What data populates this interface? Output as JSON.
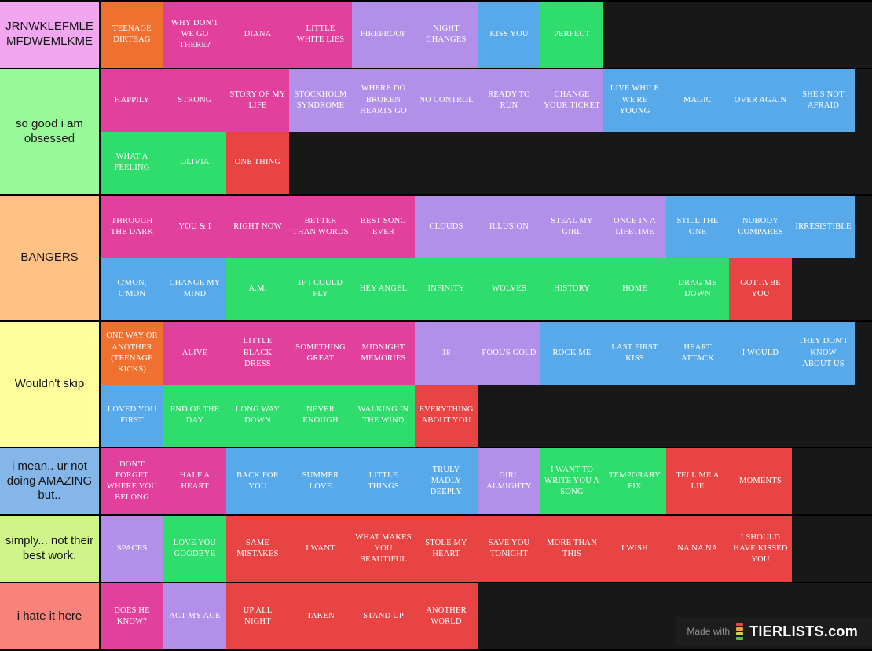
{
  "palette": {
    "orange": "#F0712F",
    "magenta": "#E2409D",
    "purple": "#B28FE8",
    "blue": "#58A9EA",
    "green": "#2EDD6B",
    "red": "#E94444"
  },
  "footer": {
    "made_with": "Made with",
    "brand": "TIERLISTS.com",
    "icon_bar_colors": [
      "#E14B4B",
      "#E8A33D",
      "#D3D34A",
      "#58C15A"
    ]
  },
  "tiers": [
    {
      "label": "JRNWKLEFMLE MFDWEMLKME",
      "label_color": "#F2A6F0",
      "items": [
        {
          "label": "TEENAGE DIRTBAG",
          "color": "orange"
        },
        {
          "label": "WHY DON'T WE GO THERE?",
          "color": "magenta"
        },
        {
          "label": "DIANA",
          "color": "magenta"
        },
        {
          "label": "LITTLE WHITE LIES",
          "color": "magenta"
        },
        {
          "label": "FIREPROOF",
          "color": "purple"
        },
        {
          "label": "NIGHT CHANGES",
          "color": "purple"
        },
        {
          "label": "KISS YOU",
          "color": "blue"
        },
        {
          "label": "PERFECT",
          "color": "green"
        }
      ]
    },
    {
      "label": "so good i am obsessed",
      "label_color": "#98F998",
      "items": [
        {
          "label": "HAPPILY",
          "color": "magenta"
        },
        {
          "label": "STRONG",
          "color": "magenta"
        },
        {
          "label": "STORY OF MY LIFE",
          "color": "magenta"
        },
        {
          "label": "STOCKHOLM SYNDROME",
          "color": "purple"
        },
        {
          "label": "WHERE DO BROKEN HEARTS GO",
          "color": "purple"
        },
        {
          "label": "NO CONTROL",
          "color": "purple"
        },
        {
          "label": "READY TO RUN",
          "color": "purple"
        },
        {
          "label": "CHANGE YOUR TICKET",
          "color": "purple"
        },
        {
          "label": "LIVE WHILE WE'RE YOUNG",
          "color": "blue"
        },
        {
          "label": "MAGIC",
          "color": "blue"
        },
        {
          "label": "OVER AGAIN",
          "color": "blue"
        },
        {
          "label": "SHE'S NOT AFRAID",
          "color": "blue"
        },
        {
          "label": "WHAT A FEELING",
          "color": "green"
        },
        {
          "label": "OLIVIA",
          "color": "green"
        },
        {
          "label": "ONE THING",
          "color": "red"
        }
      ]
    },
    {
      "label": "BANGERS",
      "label_color": "#FFC184",
      "items": [
        {
          "label": "THROUGH THE DARK",
          "color": "magenta"
        },
        {
          "label": "YOU & I",
          "color": "magenta"
        },
        {
          "label": "RIGHT NOW",
          "color": "magenta"
        },
        {
          "label": "BETTER THAN WORDS",
          "color": "magenta"
        },
        {
          "label": "BEST SONG EVER",
          "color": "magenta"
        },
        {
          "label": "CLOUDS",
          "color": "purple"
        },
        {
          "label": "ILLUSION",
          "color": "purple"
        },
        {
          "label": "STEAL MY GIRL",
          "color": "purple"
        },
        {
          "label": "ONCE IN A LIFETIME",
          "color": "purple"
        },
        {
          "label": "STILL THE ONE",
          "color": "blue"
        },
        {
          "label": "NOBODY COMPARES",
          "color": "blue"
        },
        {
          "label": "IRRESISTIBLE",
          "color": "blue"
        },
        {
          "label": "C'MON, C'MON",
          "color": "blue"
        },
        {
          "label": "CHANGE MY MIND",
          "color": "blue"
        },
        {
          "label": "A.M.",
          "color": "green"
        },
        {
          "label": "IF I COULD FLY",
          "color": "green"
        },
        {
          "label": "HEY ANGEL",
          "color": "green"
        },
        {
          "label": "INFINITY",
          "color": "green"
        },
        {
          "label": "WOLVES",
          "color": "green"
        },
        {
          "label": "HISTORY",
          "color": "green"
        },
        {
          "label": "HOME",
          "color": "green"
        },
        {
          "label": "DRAG ME DOWN",
          "color": "green"
        },
        {
          "label": "GOTTA BE YOU",
          "color": "red"
        }
      ]
    },
    {
      "label": "Wouldn't skip",
      "label_color": "#FFFD9C",
      "items": [
        {
          "label": "ONE WAY OR ANOTHER (TEENAGE KICKS)",
          "color": "orange"
        },
        {
          "label": "ALIVE",
          "color": "magenta"
        },
        {
          "label": "LITTLE BLACK DRESS",
          "color": "magenta"
        },
        {
          "label": "SOMETHING GREAT",
          "color": "magenta"
        },
        {
          "label": "MIDNIGHT MEMORIES",
          "color": "magenta"
        },
        {
          "label": "18",
          "color": "purple"
        },
        {
          "label": "FOOL'S GOLD",
          "color": "purple"
        },
        {
          "label": "ROCK ME",
          "color": "blue"
        },
        {
          "label": "LAST FIRST KISS",
          "color": "blue"
        },
        {
          "label": "HEART ATTACK",
          "color": "blue"
        },
        {
          "label": "I WOULD",
          "color": "blue"
        },
        {
          "label": "THEY DON'T KNOW ABOUT US",
          "color": "blue"
        },
        {
          "label": "LOVED YOU FIRST",
          "color": "blue"
        },
        {
          "label": "END OF THE DAY",
          "color": "green"
        },
        {
          "label": "LONG WAY DOWN",
          "color": "green"
        },
        {
          "label": "NEVER ENOUGH",
          "color": "green"
        },
        {
          "label": "WALKING IN THE WIND",
          "color": "green"
        },
        {
          "label": "EVERYTHING ABOUT YOU",
          "color": "red"
        }
      ]
    },
    {
      "label": "i mean.. ur not doing AMAZING but..",
      "label_color": "#84B6E9",
      "items": [
        {
          "label": "DON'T FORGET WHERE YOU BELONG",
          "color": "magenta"
        },
        {
          "label": "HALF A HEART",
          "color": "magenta"
        },
        {
          "label": "BACK FOR YOU",
          "color": "blue"
        },
        {
          "label": "SUMMER LOVE",
          "color": "blue"
        },
        {
          "label": "LITTLE THINGS",
          "color": "blue"
        },
        {
          "label": "TRULY MADLY DEEPLY",
          "color": "blue"
        },
        {
          "label": "GIRL ALMIGHTY",
          "color": "purple"
        },
        {
          "label": "I WANT TO WRITE YOU A SONG",
          "color": "green"
        },
        {
          "label": "TEMPORARY FIX",
          "color": "green"
        },
        {
          "label": "TELL ME A LIE",
          "color": "red"
        },
        {
          "label": "MOMENTS",
          "color": "red"
        }
      ]
    },
    {
      "label": "simply... not their best work.",
      "label_color": "#CFF58A",
      "items": [
        {
          "label": "SPACES",
          "color": "purple"
        },
        {
          "label": "LOVE YOU GOODBYE",
          "color": "green"
        },
        {
          "label": "SAME MISTAKES",
          "color": "red"
        },
        {
          "label": "I WANT",
          "color": "red"
        },
        {
          "label": "WHAT MAKES YOU BEAUTIFUL",
          "color": "red"
        },
        {
          "label": "STOLE MY HEART",
          "color": "red"
        },
        {
          "label": "SAVE YOU TONIGHT",
          "color": "red"
        },
        {
          "label": "MORE THAN THIS",
          "color": "red"
        },
        {
          "label": "I WISH",
          "color": "red"
        },
        {
          "label": "NA NA NA",
          "color": "red"
        },
        {
          "label": "I SHOULD HAVE KISSED YOU",
          "color": "red"
        }
      ]
    },
    {
      "label": "i hate it here",
      "label_color": "#F9837B",
      "items": [
        {
          "label": "DOES HE KNOW?",
          "color": "magenta"
        },
        {
          "label": "ACT MY AGE",
          "color": "purple"
        },
        {
          "label": "UP ALL NIGHT",
          "color": "red"
        },
        {
          "label": "TAKEN",
          "color": "red"
        },
        {
          "label": "STAND UP",
          "color": "red"
        },
        {
          "label": "ANOTHER WORLD",
          "color": "red"
        }
      ]
    }
  ]
}
